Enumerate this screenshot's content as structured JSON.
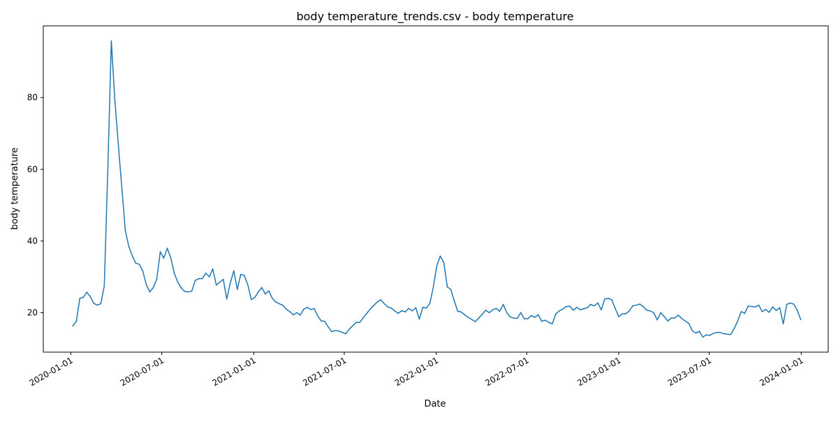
{
  "chart_data": {
    "type": "line",
    "title": "body temperature_trends.csv - body temperature",
    "xlabel": "Date",
    "ylabel": "body temperature",
    "xlim": [
      "2019-11-07",
      "2024-02-24"
    ],
    "ylim": [
      9,
      100
    ],
    "x_ticks": [
      "2020-01-01",
      "2020-07-01",
      "2021-01-01",
      "2021-07-01",
      "2022-01-01",
      "2022-07-01",
      "2023-01-01",
      "2023-07-01",
      "2024-01-01"
    ],
    "y_ticks": [
      20,
      40,
      60,
      80
    ],
    "grid": false,
    "line_color": "#1f77b4",
    "series": [
      {
        "x": [
          "2020-01-05",
          "2020-01-12",
          "2020-01-19",
          "2020-01-26",
          "2020-02-02",
          "2020-02-09",
          "2020-02-16",
          "2020-02-23",
          "2020-03-01",
          "2020-03-08",
          "2020-03-15",
          "2020-03-22",
          "2020-03-29",
          "2020-04-05",
          "2020-04-12",
          "2020-04-19",
          "2020-04-26",
          "2020-05-03",
          "2020-05-10",
          "2020-05-17",
          "2020-05-24",
          "2020-05-31",
          "2020-06-07",
          "2020-06-14",
          "2020-06-21",
          "2020-06-28",
          "2020-07-05",
          "2020-07-12",
          "2020-07-19",
          "2020-07-26",
          "2020-08-02",
          "2020-08-09",
          "2020-08-16",
          "2020-08-23",
          "2020-08-30",
          "2020-09-06",
          "2020-09-13",
          "2020-09-20",
          "2020-09-27",
          "2020-10-04",
          "2020-10-11",
          "2020-10-18",
          "2020-10-25",
          "2020-11-01",
          "2020-11-08",
          "2020-11-15",
          "2020-11-22",
          "2020-11-29",
          "2020-12-06",
          "2020-12-13",
          "2020-12-20",
          "2020-12-27",
          "2021-01-03",
          "2021-01-10",
          "2021-01-17",
          "2021-01-24",
          "2021-01-31",
          "2021-02-07",
          "2021-02-14",
          "2021-02-21",
          "2021-02-28",
          "2021-03-07",
          "2021-03-14",
          "2021-03-21",
          "2021-03-28",
          "2021-04-04",
          "2021-04-11",
          "2021-04-18",
          "2021-04-25",
          "2021-05-02",
          "2021-05-09",
          "2021-05-16",
          "2021-05-23",
          "2021-05-30",
          "2021-06-06",
          "2021-06-13",
          "2021-06-20",
          "2021-06-27",
          "2021-07-04",
          "2021-07-11",
          "2021-07-18",
          "2021-07-25",
          "2021-08-01",
          "2021-08-08",
          "2021-08-15",
          "2021-08-22",
          "2021-08-29",
          "2021-09-05",
          "2021-09-12",
          "2021-09-19",
          "2021-09-26",
          "2021-10-03",
          "2021-10-10",
          "2021-10-17",
          "2021-10-24",
          "2021-10-31",
          "2021-11-07",
          "2021-11-14",
          "2021-11-21",
          "2021-11-28",
          "2021-12-05",
          "2021-12-12",
          "2021-12-19",
          "2021-12-26",
          "2022-01-02",
          "2022-01-09",
          "2022-01-16",
          "2022-01-23",
          "2022-01-30",
          "2022-02-06",
          "2022-02-13",
          "2022-02-20",
          "2022-02-27",
          "2022-03-06",
          "2022-03-13",
          "2022-03-20",
          "2022-03-27",
          "2022-04-03",
          "2022-04-10",
          "2022-04-17",
          "2022-04-24",
          "2022-05-01",
          "2022-05-08",
          "2022-05-15",
          "2022-05-22",
          "2022-05-29",
          "2022-06-05",
          "2022-06-12",
          "2022-06-19",
          "2022-06-26",
          "2022-07-03",
          "2022-07-10",
          "2022-07-17",
          "2022-07-24",
          "2022-07-31",
          "2022-08-07",
          "2022-08-14",
          "2022-08-21",
          "2022-08-28",
          "2022-09-04",
          "2022-09-11",
          "2022-09-18",
          "2022-09-25",
          "2022-10-02",
          "2022-10-09",
          "2022-10-16",
          "2022-10-23",
          "2022-10-30",
          "2022-11-06",
          "2022-11-13",
          "2022-11-20",
          "2022-11-27",
          "2022-12-04",
          "2022-12-11",
          "2022-12-18",
          "2022-12-25",
          "2023-01-01",
          "2023-01-08",
          "2023-01-15",
          "2023-01-22",
          "2023-01-29",
          "2023-02-05",
          "2023-02-12",
          "2023-02-19",
          "2023-02-26",
          "2023-03-05",
          "2023-03-12",
          "2023-03-19",
          "2023-03-26",
          "2023-04-02",
          "2023-04-09",
          "2023-04-16",
          "2023-04-23",
          "2023-04-30",
          "2023-05-07",
          "2023-05-14",
          "2023-05-21",
          "2023-05-28",
          "2023-06-04",
          "2023-06-11",
          "2023-06-18",
          "2023-06-25",
          "2023-07-02",
          "2023-07-09",
          "2023-07-16",
          "2023-07-23",
          "2023-07-30",
          "2023-08-06",
          "2023-08-13",
          "2023-08-20",
          "2023-08-27",
          "2023-09-03",
          "2023-09-10",
          "2023-09-17",
          "2023-09-24",
          "2023-10-01",
          "2023-10-08",
          "2023-10-15",
          "2023-10-22",
          "2023-10-29",
          "2023-11-05",
          "2023-11-12",
          "2023-11-19",
          "2023-11-26",
          "2023-12-03",
          "2023-12-10",
          "2023-12-17",
          "2023-12-24",
          "2023-12-31"
        ],
        "y": [
          16.3,
          17.6,
          24.0,
          24.3,
          25.7,
          24.5,
          22.6,
          22.1,
          22.5,
          27.4,
          60.0,
          95.8,
          79.4,
          67.0,
          55.0,
          43.0,
          38.5,
          35.9,
          33.8,
          33.5,
          31.6,
          27.8,
          25.8,
          27.0,
          29.4,
          37.0,
          35.2,
          38.0,
          35.3,
          31.0,
          28.5,
          26.9,
          25.9,
          25.8,
          26.0,
          29.0,
          29.5,
          29.5,
          31.0,
          30.0,
          32.2,
          27.7,
          28.5,
          29.3,
          23.8,
          28.3,
          31.7,
          26.5,
          30.7,
          30.4,
          27.8,
          23.7,
          24.2,
          25.8,
          27.0,
          25.2,
          26.1,
          24.0,
          23.0,
          22.5,
          22.1,
          21.0,
          20.3,
          19.4,
          20.0,
          19.3,
          21.0,
          21.5,
          20.9,
          21.1,
          19.1,
          17.7,
          17.6,
          16.0,
          14.7,
          15.0,
          14.9,
          14.5,
          14.1,
          15.4,
          16.4,
          17.3,
          17.3,
          18.6,
          19.8,
          21.0,
          22.0,
          23.0,
          23.6,
          22.5,
          21.6,
          21.3,
          20.5,
          19.8,
          20.6,
          20.2,
          21.2,
          20.5,
          21.4,
          18.2,
          21.5,
          21.3,
          22.5,
          27.0,
          33.0,
          35.8,
          34.0,
          27.2,
          26.5,
          23.3,
          20.4,
          20.2,
          19.4,
          18.7,
          18.1,
          17.5,
          18.5,
          19.6,
          20.7,
          20.0,
          20.8,
          21.2,
          20.4,
          22.3,
          20.0,
          18.8,
          18.5,
          18.4,
          20.0,
          18.3,
          18.3,
          19.2,
          18.7,
          19.4,
          17.6,
          17.9,
          17.3,
          16.9,
          19.6,
          20.5,
          21.0,
          21.7,
          21.8,
          20.7,
          21.5,
          20.8,
          21.1,
          21.4,
          22.3,
          21.9,
          22.7,
          20.8,
          23.8,
          24.0,
          23.6,
          21.2,
          18.9,
          19.7,
          19.7,
          20.5,
          21.9,
          22.1,
          22.4,
          21.7,
          20.7,
          20.5,
          20.0,
          18.0,
          20.0,
          18.9,
          17.7,
          18.5,
          18.5,
          19.3,
          18.4,
          17.7,
          17.0,
          15.0,
          14.3,
          14.8,
          13.2,
          13.8,
          13.7,
          14.2,
          14.5,
          14.5,
          14.1,
          14.0,
          13.9,
          15.6,
          17.7,
          20.3,
          19.8,
          21.9,
          21.7,
          21.6,
          22.1,
          20.3,
          20.9,
          20.1,
          21.6,
          20.6,
          21.4,
          16.9,
          22.3,
          22.7,
          22.4,
          20.7,
          18.1
        ]
      }
    ]
  }
}
